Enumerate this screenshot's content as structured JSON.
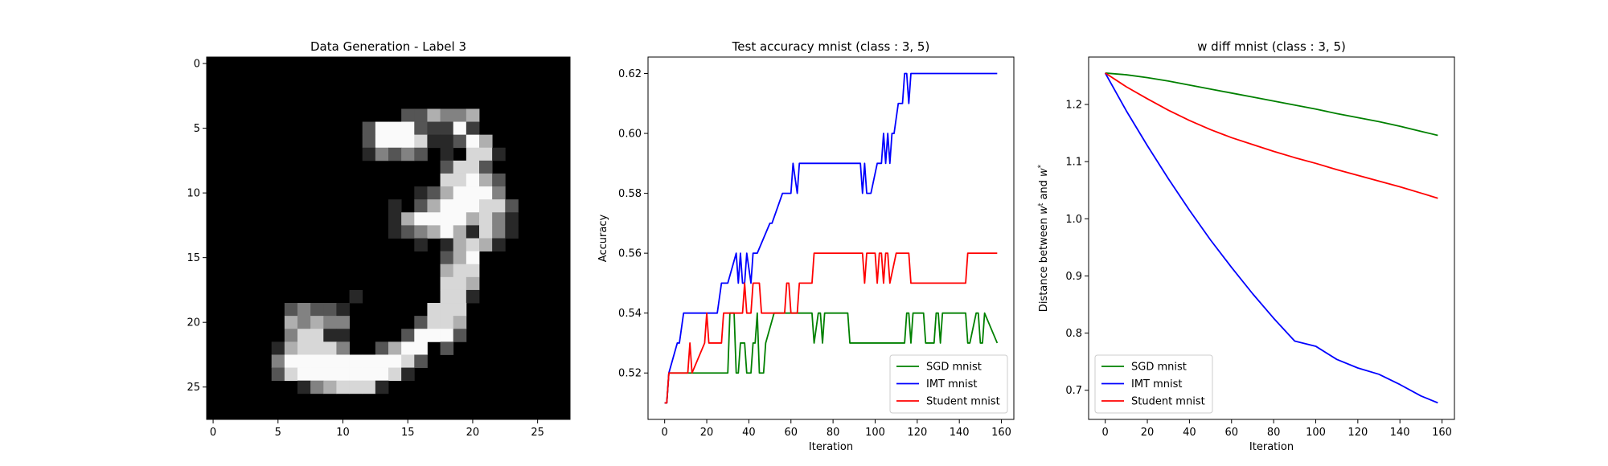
{
  "chart_data": [
    {
      "type": "heatmap",
      "title": "Data Generation - Label 3",
      "colormap": "gray",
      "xlim": [
        -0.5,
        27.5
      ],
      "ylim": [
        27.5,
        -0.5
      ],
      "xticks": [
        0,
        5,
        10,
        15,
        20,
        25
      ],
      "yticks": [
        0,
        5,
        10,
        15,
        20,
        25
      ],
      "rows": [
        "............................",
        "............................",
        "............................",
        "............................",
        "...............bbdccd.......",
        "............bfffbggfg.......",
        "............bfffeaabfd......",
        "............acbcb.a.eea.....",
        "..................beeb......",
        "..................eefdb.....",
        "................abdfffc.....",
        "..............a.bdfffeeb....",
        "..............adffffdeca....",
        "..............abcdfdaeca....",
        "................a.adeda.....",
        "..................bdf.......",
        "..................dee.......",
        "..................eed.......",
        "...........a......eea.......",
        "......bcbba......eee........",
        "......dcdcc.....beed........",
        "......ceeaa....bfffb........",
        ".....adeeec..bdff.b.........",
        ".....cfffffffffeb...........",
        ".....befffffffea............",
        ".......acdeeea..............",
        "............................",
        "............................"
      ]
    },
    {
      "type": "line",
      "title": "Test accuracy mnist (class : 3, 5)",
      "xlabel": "Iteration",
      "ylabel": "Accuracy",
      "xlim": [
        -7.9,
        165.9
      ],
      "ylim": [
        0.5045,
        0.6255
      ],
      "xticks": [
        0,
        20,
        40,
        60,
        80,
        100,
        120,
        140,
        160
      ],
      "yticks": [
        0.52,
        0.54,
        0.56,
        0.58,
        0.6,
        0.62
      ],
      "legend": "lower right",
      "series": [
        {
          "name": "SGD mnist",
          "color": "#008000",
          "x": [
            0,
            1,
            2,
            30,
            31,
            33,
            34,
            35,
            36,
            38,
            39,
            41,
            42,
            43,
            44,
            45,
            47,
            48,
            52,
            70,
            71,
            73,
            74,
            75,
            76,
            80,
            87,
            88,
            114,
            115,
            116,
            117,
            118,
            123,
            124,
            128,
            129,
            130,
            131,
            132,
            133,
            135,
            143,
            144,
            145,
            148,
            149,
            150,
            151,
            152,
            158
          ],
          "y": [
            0.51,
            0.51,
            0.52,
            0.52,
            0.54,
            0.54,
            0.52,
            0.52,
            0.53,
            0.53,
            0.52,
            0.52,
            0.53,
            0.53,
            0.54,
            0.52,
            0.52,
            0.53,
            0.54,
            0.54,
            0.53,
            0.54,
            0.54,
            0.53,
            0.54,
            0.54,
            0.54,
            0.53,
            0.53,
            0.54,
            0.54,
            0.53,
            0.54,
            0.54,
            0.53,
            0.53,
            0.54,
            0.54,
            0.53,
            0.54,
            0.54,
            0.54,
            0.54,
            0.53,
            0.53,
            0.54,
            0.54,
            0.53,
            0.53,
            0.54,
            0.53
          ]
        },
        {
          "name": "IMT mnist",
          "color": "#0000ff",
          "x": [
            0,
            1,
            2,
            6,
            7,
            9,
            25,
            27,
            30,
            34,
            35,
            36,
            37,
            38,
            39,
            41,
            42,
            43,
            44,
            50,
            51,
            56,
            57,
            58,
            60,
            61,
            63,
            64,
            93,
            94,
            95,
            96,
            98,
            101,
            102,
            103,
            104,
            105,
            106,
            107,
            108,
            109,
            111,
            112,
            113,
            114,
            115,
            116,
            117,
            118,
            158
          ],
          "y": [
            0.51,
            0.51,
            0.52,
            0.53,
            0.53,
            0.54,
            0.54,
            0.55,
            0.55,
            0.56,
            0.55,
            0.56,
            0.55,
            0.55,
            0.56,
            0.55,
            0.56,
            0.56,
            0.56,
            0.57,
            0.57,
            0.58,
            0.58,
            0.58,
            0.58,
            0.59,
            0.58,
            0.59,
            0.59,
            0.58,
            0.59,
            0.58,
            0.58,
            0.59,
            0.59,
            0.59,
            0.6,
            0.59,
            0.6,
            0.59,
            0.6,
            0.6,
            0.61,
            0.61,
            0.61,
            0.62,
            0.62,
            0.61,
            0.62,
            0.62,
            0.62
          ]
        },
        {
          "name": "Student mnist",
          "color": "#ff0000",
          "x": [
            0,
            1,
            2,
            11,
            12,
            13,
            19,
            20,
            21,
            27,
            28,
            36,
            37,
            38,
            39,
            41,
            42,
            45,
            46,
            47,
            49,
            57,
            58,
            59,
            60,
            63,
            64,
            70,
            71,
            72,
            94,
            95,
            96,
            97,
            98,
            100,
            101,
            102,
            103,
            104,
            105,
            106,
            107,
            110,
            111,
            116,
            117,
            143,
            144,
            146,
            147,
            158
          ],
          "y": [
            0.51,
            0.51,
            0.52,
            0.52,
            0.53,
            0.52,
            0.53,
            0.54,
            0.53,
            0.53,
            0.54,
            0.54,
            0.54,
            0.55,
            0.54,
            0.54,
            0.55,
            0.55,
            0.54,
            0.54,
            0.54,
            0.54,
            0.55,
            0.55,
            0.54,
            0.54,
            0.55,
            0.55,
            0.56,
            0.56,
            0.56,
            0.55,
            0.56,
            0.56,
            0.56,
            0.56,
            0.55,
            0.56,
            0.56,
            0.55,
            0.56,
            0.56,
            0.55,
            0.56,
            0.56,
            0.56,
            0.55,
            0.55,
            0.56,
            0.56,
            0.56,
            0.56
          ]
        }
      ]
    },
    {
      "type": "line",
      "title": "w diff mnist (class : 3, 5)",
      "xlabel": "Iteration",
      "ylabel": "Distance between w^t and w^*",
      "ylabel_parts": [
        "Distance between ",
        "w",
        "t",
        " and ",
        "w",
        "*"
      ],
      "xlim": [
        -7.9,
        165.9
      ],
      "ylim": [
        0.649,
        1.283
      ],
      "xticks": [
        0,
        20,
        40,
        60,
        80,
        100,
        120,
        140,
        160
      ],
      "yticks": [
        0.7,
        0.8,
        0.9,
        1.0,
        1.1,
        1.2
      ],
      "legend": "lower left",
      "series": [
        {
          "name": "SGD mnist",
          "color": "#008000",
          "x": [
            0,
            10,
            20,
            30,
            40,
            50,
            60,
            70,
            80,
            90,
            100,
            110,
            120,
            130,
            140,
            150,
            158
          ],
          "y": [
            1.255,
            1.252,
            1.247,
            1.241,
            1.234,
            1.227,
            1.22,
            1.213,
            1.206,
            1.199,
            1.192,
            1.184,
            1.177,
            1.17,
            1.162,
            1.153,
            1.146
          ]
        },
        {
          "name": "IMT mnist",
          "color": "#0000ff",
          "x": [
            0,
            10,
            20,
            30,
            40,
            50,
            60,
            70,
            80,
            90,
            100,
            110,
            120,
            130,
            140,
            150,
            158
          ],
          "y": [
            1.255,
            1.189,
            1.128,
            1.07,
            1.015,
            0.963,
            0.915,
            0.869,
            0.826,
            0.786,
            0.777,
            0.754,
            0.739,
            0.728,
            0.71,
            0.69,
            0.678
          ]
        },
        {
          "name": "Student mnist",
          "color": "#ff0000",
          "x": [
            0,
            10,
            20,
            30,
            40,
            50,
            60,
            70,
            80,
            90,
            100,
            110,
            120,
            130,
            140,
            150,
            158
          ],
          "y": [
            1.255,
            1.231,
            1.21,
            1.19,
            1.172,
            1.156,
            1.142,
            1.13,
            1.118,
            1.107,
            1.097,
            1.086,
            1.076,
            1.066,
            1.056,
            1.045,
            1.036
          ]
        }
      ]
    }
  ]
}
